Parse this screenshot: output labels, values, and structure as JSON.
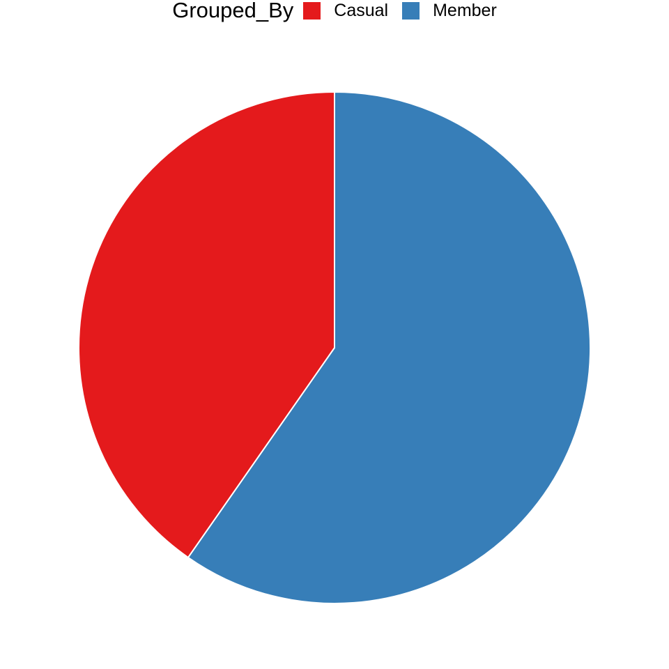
{
  "chart_data": {
    "type": "pie",
    "legend_title": "Grouped_By",
    "legend_position": "top",
    "start_angle": "12 o'clock, clockwise",
    "slices": [
      {
        "label": "Member",
        "value": 59.7,
        "color": "#377EB8"
      },
      {
        "label": "Casual",
        "value": 40.3,
        "color": "#E41A1C"
      }
    ]
  }
}
